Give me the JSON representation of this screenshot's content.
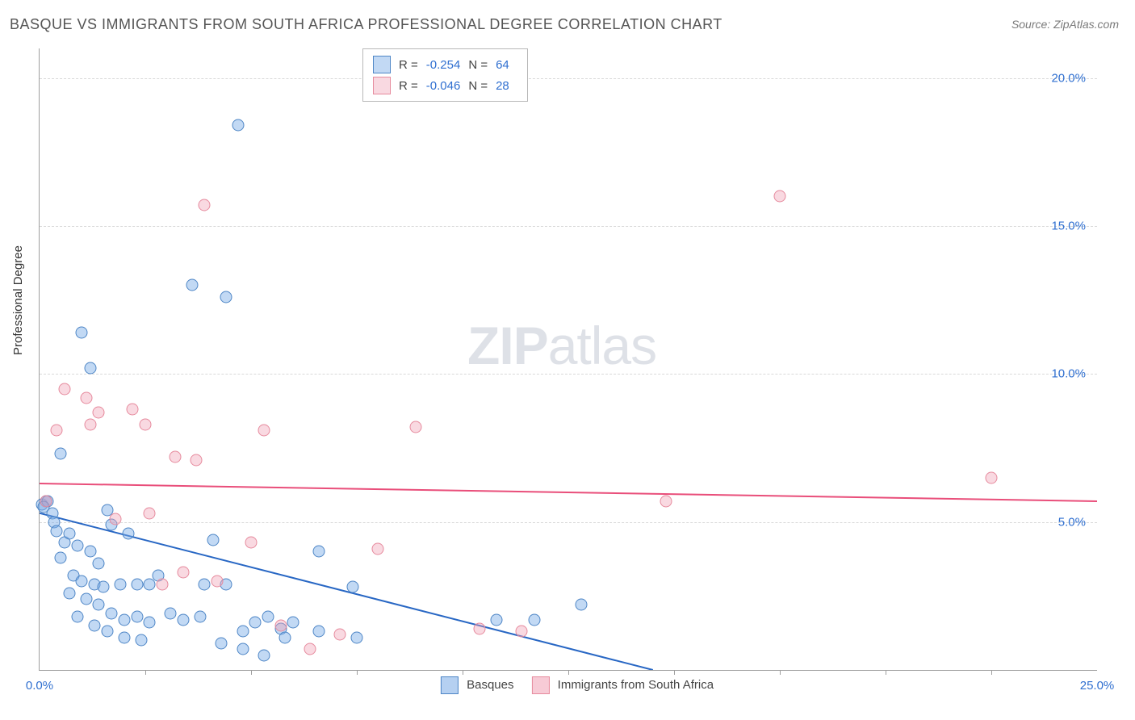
{
  "title": "BASQUE VS IMMIGRANTS FROM SOUTH AFRICA PROFESSIONAL DEGREE CORRELATION CHART",
  "source": "Source: ZipAtlas.com",
  "yaxis_title": "Professional Degree",
  "watermark_a": "ZIP",
  "watermark_b": "atlas",
  "chart": {
    "type": "scatter",
    "background_color": "#ffffff",
    "grid_color": "#d9d9d9",
    "axis_color": "#9e9e9e",
    "tick_label_color": "#2f6fd0",
    "xlim": [
      0,
      25
    ],
    "ylim": [
      0,
      21
    ],
    "ytick_step": 5,
    "xtick_step": 2.5,
    "x_labels": [
      {
        "v": 0,
        "t": "0.0%"
      },
      {
        "v": 25,
        "t": "25.0%"
      }
    ],
    "y_labels": [
      {
        "v": 5,
        "t": "5.0%"
      },
      {
        "v": 10,
        "t": "10.0%"
      },
      {
        "v": 15,
        "t": "15.0%"
      },
      {
        "v": 20,
        "t": "20.0%"
      }
    ],
    "series": [
      {
        "name": "Basques",
        "marker_fill": "rgba(120,170,230,0.45)",
        "marker_stroke": "#4e86c6",
        "marker_size": 15,
        "line_color": "#2867c4",
        "line_width": 2,
        "trend": {
          "x1": 0,
          "y1": 5.3,
          "x2": 14.5,
          "y2": 0
        },
        "r_label": "R =",
        "r_value": "-0.254",
        "n_label": "N =",
        "n_value": "64",
        "points": [
          [
            0.05,
            5.6
          ],
          [
            0.15,
            5.7
          ],
          [
            0.2,
            5.7
          ],
          [
            0.1,
            5.5
          ],
          [
            0.3,
            5.3
          ],
          [
            0.35,
            5.0
          ],
          [
            0.5,
            7.3
          ],
          [
            1.0,
            11.4
          ],
          [
            1.2,
            10.2
          ],
          [
            1.6,
            5.4
          ],
          [
            1.7,
            4.9
          ],
          [
            0.4,
            4.7
          ],
          [
            0.6,
            4.3
          ],
          [
            0.7,
            4.6
          ],
          [
            0.9,
            4.2
          ],
          [
            1.2,
            4.0
          ],
          [
            1.4,
            3.6
          ],
          [
            0.5,
            3.8
          ],
          [
            0.8,
            3.2
          ],
          [
            1.0,
            3.0
          ],
          [
            1.3,
            2.9
          ],
          [
            1.5,
            2.8
          ],
          [
            1.9,
            2.9
          ],
          [
            2.1,
            4.6
          ],
          [
            2.3,
            2.9
          ],
          [
            2.6,
            2.9
          ],
          [
            2.8,
            3.2
          ],
          [
            0.7,
            2.6
          ],
          [
            1.1,
            2.4
          ],
          [
            1.4,
            2.2
          ],
          [
            1.7,
            1.9
          ],
          [
            2.0,
            1.7
          ],
          [
            2.3,
            1.8
          ],
          [
            2.6,
            1.6
          ],
          [
            3.1,
            1.9
          ],
          [
            3.4,
            1.7
          ],
          [
            3.8,
            1.8
          ],
          [
            4.1,
            4.4
          ],
          [
            4.4,
            12.6
          ],
          [
            4.7,
            18.4
          ],
          [
            3.6,
            13.0
          ],
          [
            3.9,
            2.9
          ],
          [
            4.4,
            2.9
          ],
          [
            4.8,
            1.3
          ],
          [
            5.1,
            1.6
          ],
          [
            5.4,
            1.8
          ],
          [
            5.7,
            1.4
          ],
          [
            6.0,
            1.6
          ],
          [
            6.6,
            4.0
          ],
          [
            7.4,
            2.8
          ],
          [
            0.9,
            1.8
          ],
          [
            1.3,
            1.5
          ],
          [
            1.6,
            1.3
          ],
          [
            2.0,
            1.1
          ],
          [
            2.4,
            1.0
          ],
          [
            4.3,
            0.9
          ],
          [
            4.8,
            0.7
          ],
          [
            5.3,
            0.5
          ],
          [
            5.8,
            1.1
          ],
          [
            6.6,
            1.3
          ],
          [
            7.5,
            1.1
          ],
          [
            10.8,
            1.7
          ],
          [
            11.7,
            1.7
          ],
          [
            12.8,
            2.2
          ]
        ]
      },
      {
        "name": "Immigrants from South Africa",
        "marker_fill": "rgba(240,160,180,0.40)",
        "marker_stroke": "#e68a9d",
        "marker_size": 15,
        "line_color": "#e94e7a",
        "line_width": 2,
        "trend": {
          "x1": 0,
          "y1": 6.3,
          "x2": 25,
          "y2": 5.7
        },
        "r_label": "R =",
        "r_value": "-0.046",
        "n_label": "N =",
        "n_value": "28",
        "points": [
          [
            0.15,
            5.7
          ],
          [
            0.4,
            8.1
          ],
          [
            0.6,
            9.5
          ],
          [
            1.1,
            9.2
          ],
          [
            1.2,
            8.3
          ],
          [
            1.4,
            8.7
          ],
          [
            2.2,
            8.8
          ],
          [
            2.5,
            8.3
          ],
          [
            3.2,
            7.2
          ],
          [
            3.7,
            7.1
          ],
          [
            5.3,
            8.1
          ],
          [
            3.9,
            15.7
          ],
          [
            1.8,
            5.1
          ],
          [
            2.6,
            5.3
          ],
          [
            2.9,
            2.9
          ],
          [
            3.4,
            3.3
          ],
          [
            4.2,
            3.0
          ],
          [
            5.0,
            4.3
          ],
          [
            5.7,
            1.5
          ],
          [
            6.4,
            0.7
          ],
          [
            7.1,
            1.2
          ],
          [
            8.0,
            4.1
          ],
          [
            8.9,
            8.2
          ],
          [
            10.4,
            1.4
          ],
          [
            11.4,
            1.3
          ],
          [
            14.8,
            5.7
          ],
          [
            17.5,
            16.0
          ],
          [
            22.5,
            6.5
          ]
        ]
      }
    ],
    "legend_bottom": [
      {
        "label": "Basques",
        "fill": "rgba(120,170,230,0.55)",
        "stroke": "#4e86c6"
      },
      {
        "label": "Immigrants from South Africa",
        "fill": "rgba(240,160,180,0.55)",
        "stroke": "#e68a9d"
      }
    ]
  }
}
